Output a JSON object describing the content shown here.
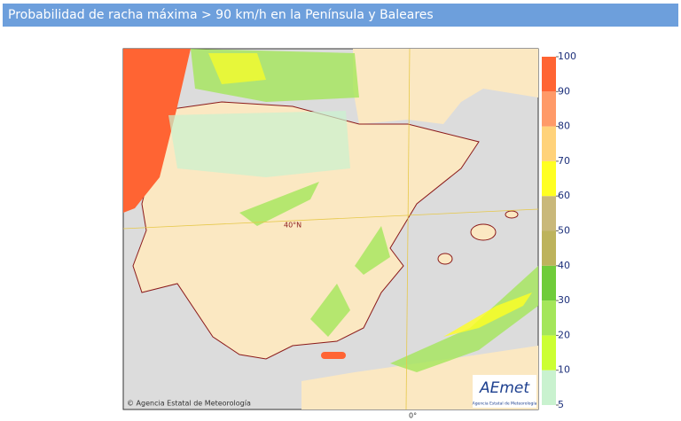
{
  "header": {
    "title": "Probabilidad de racha máxima > 90 km/h en la Península y Baleares"
  },
  "map": {
    "lat_label": "40°N",
    "lon_label": "0°",
    "credit": "© Agencia Estatal de Meteorología",
    "logo": "AEmet",
    "logo_subtitle": "Agencia Estatal de Meteorología"
  },
  "legend": {
    "ticks": [
      5,
      10,
      20,
      30,
      40,
      50,
      60,
      70,
      80,
      90,
      100
    ],
    "colors": [
      "#c9f2cf",
      "#ccff33",
      "#a4e65a",
      "#6fcc3a",
      "#bdb35c",
      "#c9b87a",
      "#ffff22",
      "#ffd27a",
      "#ff9a68",
      "#ff6433"
    ]
  }
}
